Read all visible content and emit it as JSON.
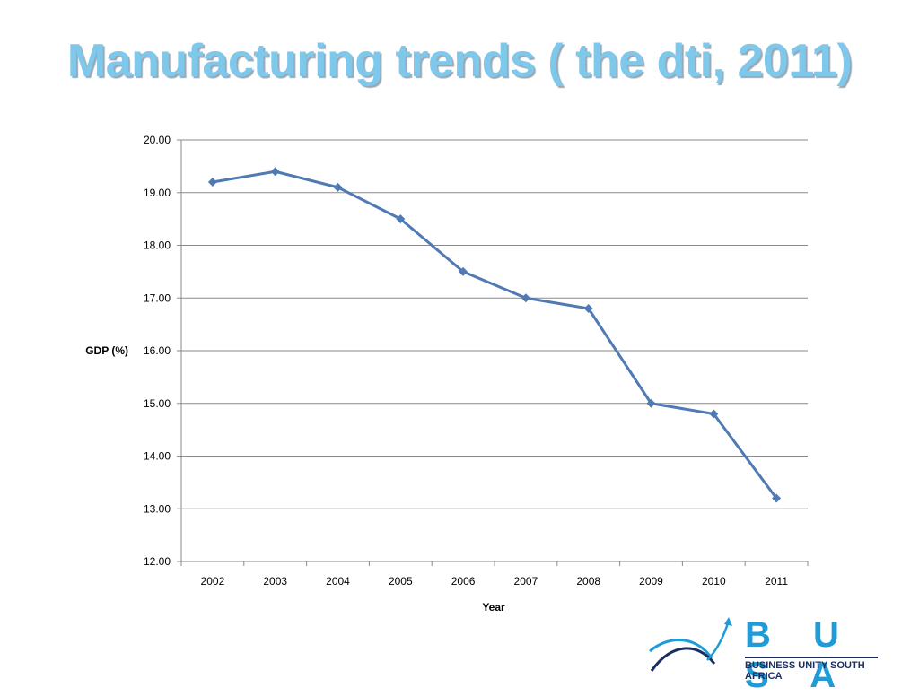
{
  "slide": {
    "title": "Manufacturing trends ( the dti, 2011)"
  },
  "logo": {
    "letters": "B U S A",
    "subtitle": "BUSINESS UNITY SOUTH AFRICA",
    "mark_color": "#1f9bd7",
    "mark_dark": "#1b2f5e"
  },
  "chart_data": {
    "type": "line",
    "categories": [
      "2002",
      "2003",
      "2004",
      "2005",
      "2006",
      "2007",
      "2008",
      "2009",
      "2010",
      "2011"
    ],
    "series": [
      {
        "values": [
          19.2,
          19.4,
          19.1,
          18.5,
          17.5,
          17.0,
          16.8,
          15.0,
          14.8,
          13.2
        ],
        "color": "#4f7ab3"
      }
    ],
    "xlabel": "Year",
    "ylabel": "GDP (%)",
    "ylim": [
      12.0,
      20.0
    ],
    "yticks": [
      "12.00",
      "13.00",
      "14.00",
      "15.00",
      "16.00",
      "17.00",
      "18.00",
      "19.00",
      "20.00"
    ],
    "grid": "horizontal",
    "marker": "diamond"
  }
}
